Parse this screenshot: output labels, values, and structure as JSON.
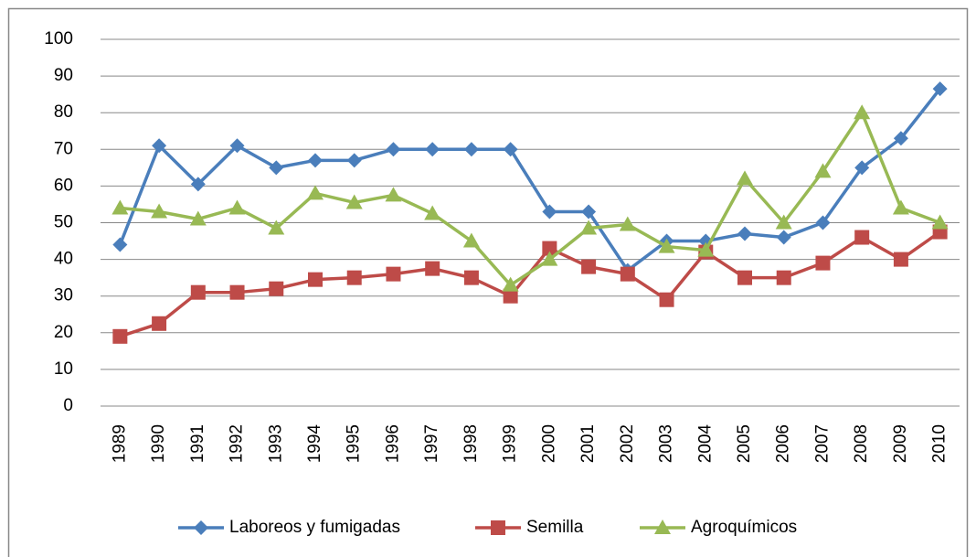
{
  "chart_data": {
    "type": "line",
    "categories": [
      "1989",
      "1990",
      "1991",
      "1992",
      "1993",
      "1994",
      "1995",
      "1996",
      "1997",
      "1998",
      "1999",
      "2000",
      "2001",
      "2002",
      "2003",
      "2004",
      "2005",
      "2006",
      "2007",
      "2008",
      "2009",
      "2010"
    ],
    "series": [
      {
        "name": "Laboreos y fumigadas",
        "color": "#4a7ebb",
        "marker": "diamond",
        "values": [
          44,
          71,
          60.5,
          71,
          65,
          67,
          67,
          70,
          70,
          70,
          70,
          53,
          53,
          37,
          45,
          45,
          47,
          46,
          50,
          65,
          73,
          86.5
        ]
      },
      {
        "name": "Semilla",
        "color": "#be4b48",
        "marker": "square",
        "values": [
          19,
          22.5,
          31,
          31,
          32,
          34.5,
          35,
          36,
          37.5,
          35,
          30,
          43,
          38,
          36,
          29,
          42,
          35,
          35,
          39,
          46,
          40,
          47.5
        ]
      },
      {
        "name": "Agroquímicos",
        "color": "#98b954",
        "marker": "triangle",
        "values": [
          54,
          53,
          51,
          54,
          48.5,
          58,
          55.5,
          57.5,
          52.5,
          45,
          33,
          40,
          48.5,
          49.5,
          43.5,
          42.5,
          62,
          50,
          64,
          80,
          54,
          50
        ]
      }
    ],
    "ylim": [
      0,
      100
    ],
    "yticks": [
      0,
      10,
      20,
      30,
      40,
      50,
      60,
      70,
      80,
      90,
      100
    ],
    "grid": true,
    "legend": "bottom"
  }
}
